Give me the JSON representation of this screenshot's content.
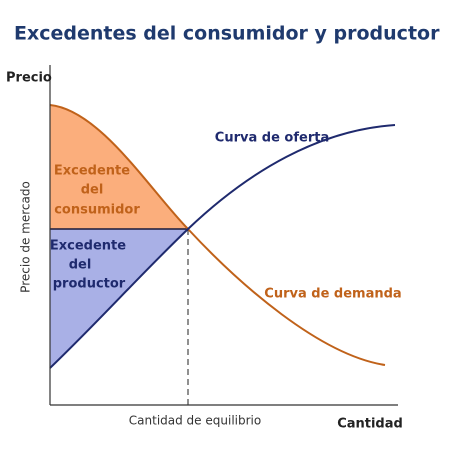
{
  "title": "Excedentes del consumidor y productor",
  "y_axis_label": "Precio",
  "y_marker_label": "Precio de mercado",
  "x_axis_label": "Cantidad",
  "x_marker_label": "Cantidad de equilibrio",
  "supply_label": "Curva de oferta",
  "demand_label": "Curva de demanda",
  "consumer_surplus_label": [
    "Excedente",
    "del",
    "consumidor"
  ],
  "producer_surplus_label": [
    "Excedente",
    "del",
    "productor"
  ]
}
